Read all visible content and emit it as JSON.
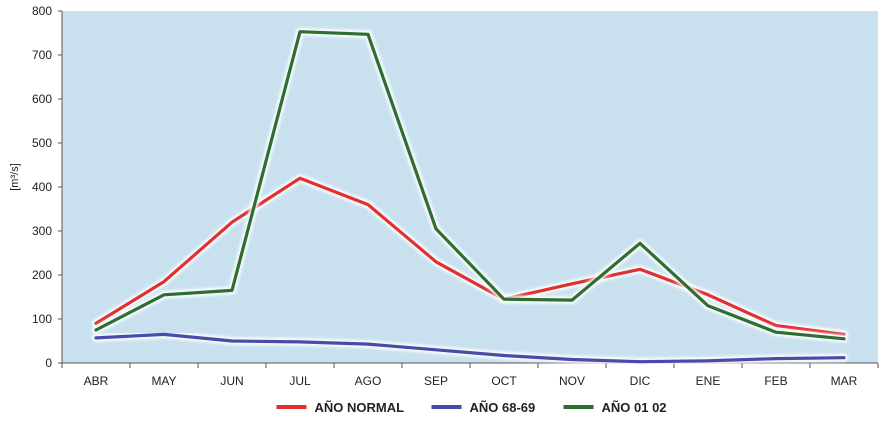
{
  "chart_data": {
    "type": "line",
    "title": "",
    "xlabel": "",
    "ylabel": "[m³/s]",
    "ylim": [
      0,
      800
    ],
    "yticks": [
      0,
      100,
      200,
      300,
      400,
      500,
      600,
      700,
      800
    ],
    "grid": false,
    "legend_position": "bottom",
    "plot_background": "#c9e1ef",
    "categories": [
      "ABR",
      "MAY",
      "JUN",
      "JUL",
      "AGO",
      "SEP",
      "OCT",
      "NOV",
      "DIC",
      "ENE",
      "FEB",
      "MAR"
    ],
    "series": [
      {
        "name": "AÑO NORMAL",
        "color": "#e03030",
        "values": [
          90,
          185,
          320,
          420,
          360,
          230,
          145,
          180,
          213,
          155,
          85,
          65
        ]
      },
      {
        "name": "AÑO 68-69",
        "color": "#4a4aa8",
        "values": [
          57,
          65,
          50,
          48,
          43,
          30,
          17,
          8,
          3,
          5,
          10,
          12
        ]
      },
      {
        "name": "AÑO 01 02",
        "color": "#2e6e30",
        "values": [
          75,
          155,
          165,
          753,
          747,
          305,
          145,
          143,
          272,
          130,
          70,
          55
        ]
      }
    ]
  }
}
